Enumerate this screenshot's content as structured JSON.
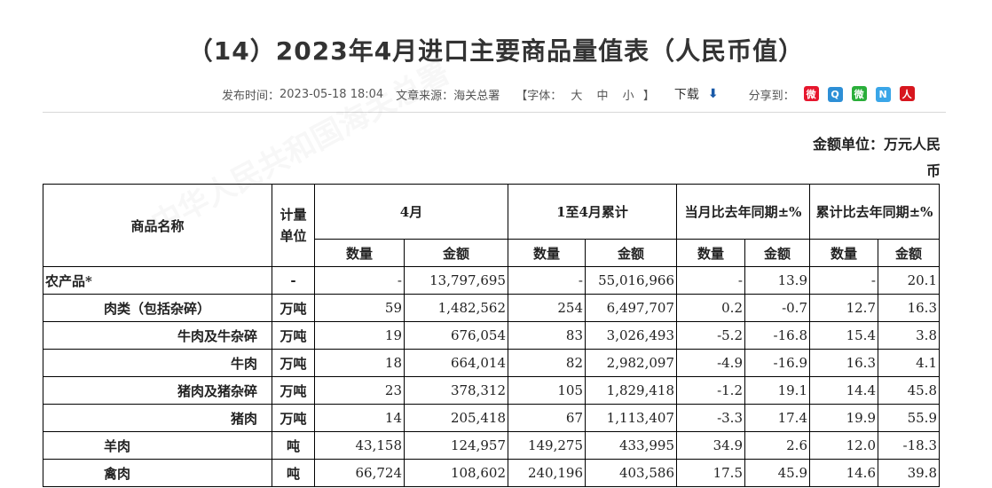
{
  "title": "（14）2023年4月进口主要商品量值表（人民币值）",
  "meta": {
    "publish_label": "发布时间：",
    "publish_time": "2023-05-18 18:04",
    "source_label": "文章来源：",
    "source": "海关总署",
    "font_open": "【字体：",
    "font_large": "大",
    "font_medium": "中",
    "font_small": "小",
    "font_close": "】",
    "download": "下载",
    "share_label": "分享到："
  },
  "share_icons": [
    {
      "name": "weibo-icon",
      "glyph": "微",
      "color": "#e6162d"
    },
    {
      "name": "qzone-icon",
      "glyph": "Q",
      "color": "#2d8fd6"
    },
    {
      "name": "wechat-icon",
      "glyph": "微",
      "color": "#2aae3a"
    },
    {
      "name": "qq-icon",
      "glyph": "N",
      "color": "#3aa6e8"
    },
    {
      "name": "renren-icon",
      "glyph": "人",
      "color": "#d7161e"
    }
  ],
  "unit_note": "金额单位：万元人民币",
  "table": {
    "headers": {
      "name": "商品名称",
      "unit": "计量单位",
      "month": "4月",
      "cumulative": "1至4月累计",
      "yoy_month": "当月比去年同期±%",
      "yoy_cum": "累计比去年同期±%",
      "qty": "数量",
      "amount": "金额"
    },
    "rows": [
      {
        "name": "农产品*",
        "level": 0,
        "unit": "-",
        "m_qty": "-",
        "m_amt": "13,797,695",
        "c_qty": "-",
        "c_amt": "55,016,966",
        "ym_qty": "-",
        "ym_amt": "13.9",
        "yc_qty": "-",
        "yc_amt": "20.1"
      },
      {
        "name": "肉类（包括杂碎）",
        "level": 1,
        "unit": "万吨",
        "m_qty": "59",
        "m_amt": "1,482,562",
        "c_qty": "254",
        "c_amt": "6,497,707",
        "ym_qty": "0.2",
        "ym_amt": "-0.7",
        "yc_qty": "12.7",
        "yc_amt": "16.3"
      },
      {
        "name": "牛肉及牛杂碎",
        "level": 2,
        "unit": "万吨",
        "m_qty": "19",
        "m_amt": "676,054",
        "c_qty": "83",
        "c_amt": "3,026,493",
        "ym_qty": "-5.2",
        "ym_amt": "-16.8",
        "yc_qty": "15.4",
        "yc_amt": "3.8"
      },
      {
        "name": "牛肉",
        "level": 2,
        "unit": "万吨",
        "m_qty": "18",
        "m_amt": "664,014",
        "c_qty": "82",
        "c_amt": "2,982,097",
        "ym_qty": "-4.9",
        "ym_amt": "-16.9",
        "yc_qty": "16.3",
        "yc_amt": "4.1"
      },
      {
        "name": "猪肉及猪杂碎",
        "level": 2,
        "unit": "万吨",
        "m_qty": "23",
        "m_amt": "378,312",
        "c_qty": "105",
        "c_amt": "1,829,418",
        "ym_qty": "-1.2",
        "ym_amt": "19.1",
        "yc_qty": "14.4",
        "yc_amt": "45.8"
      },
      {
        "name": "猪肉",
        "level": 2,
        "unit": "万吨",
        "m_qty": "14",
        "m_amt": "205,418",
        "c_qty": "67",
        "c_amt": "1,113,407",
        "ym_qty": "-3.3",
        "ym_amt": "17.4",
        "yc_qty": "19.9",
        "yc_amt": "55.9"
      },
      {
        "name": "羊肉",
        "level": 1,
        "unit": "吨",
        "m_qty": "43,158",
        "m_amt": "124,957",
        "c_qty": "149,275",
        "c_amt": "433,995",
        "ym_qty": "34.9",
        "ym_amt": "2.6",
        "yc_qty": "12.0",
        "yc_amt": "-18.3"
      },
      {
        "name": "禽肉",
        "level": 1,
        "unit": "吨",
        "m_qty": "66,724",
        "m_amt": "108,602",
        "c_qty": "240,196",
        "c_amt": "403,586",
        "ym_qty": "17.5",
        "ym_amt": "45.9",
        "yc_qty": "14.6",
        "yc_amt": "39.8"
      }
    ]
  }
}
